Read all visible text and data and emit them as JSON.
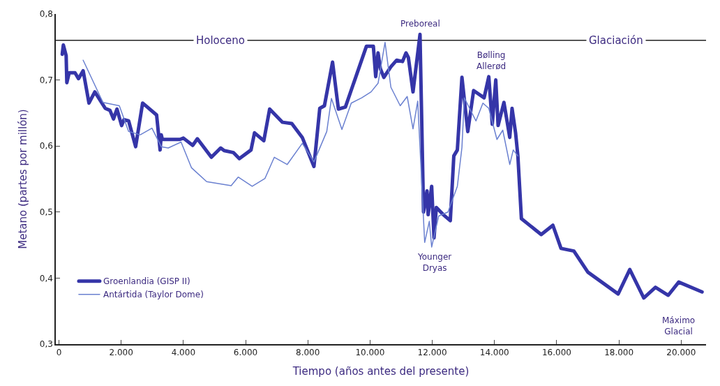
{
  "chart_data": {
    "type": "line",
    "xlabel": "Tiempo (años antes del presente)",
    "ylabel": "Metano (partes por millón)",
    "xlim": [
      -100,
      20800
    ],
    "xticks": [
      0,
      {
        "value": 2000,
        "label": "2.000"
      },
      {
        "value": 4000,
        "label": "4.000"
      },
      {
        "value": 6000,
        "label": "6.000"
      },
      {
        "value": 8000,
        "label": "8.000"
      },
      {
        "value": 10000,
        "label": "10.000"
      },
      {
        "value": 12000,
        "label": "12.000"
      },
      {
        "value": 14000,
        "label": "14.000"
      },
      {
        "value": 16000,
        "label": "16.000"
      },
      {
        "value": 18000,
        "label": "18.000"
      },
      {
        "value": 20000,
        "label": "20.000"
      }
    ],
    "ylim": [
      0.3,
      0.8
    ],
    "yticks": [
      {
        "value": 0.3,
        "label": "0,3"
      },
      {
        "value": 0.4,
        "label": "0,4"
      },
      {
        "value": 0.5,
        "label": "0,5"
      },
      {
        "value": 0.6,
        "label": "0,6"
      },
      {
        "value": 0.7,
        "label": "0,7"
      },
      {
        "value": 0.8,
        "label": "0,8"
      }
    ],
    "grid": false,
    "legend": "bottom left",
    "marker": "none",
    "line_style": "solid",
    "series": [
      {
        "name": "Groenlandia (GISP II)",
        "color": "#3535a8",
        "x": [
          106,
          142,
          232,
          254,
          330,
          517,
          630,
          779,
          966,
          1154,
          1490,
          1641,
          1754,
          1865,
          2016,
          2091,
          2241,
          2466,
          2690,
          3140,
          3252,
          3289,
          3326,
          3888,
          4001,
          4300,
          4450,
          4900,
          5199,
          5312,
          5612,
          5799,
          6174,
          6287,
          6586,
          6773,
          7186,
          7485,
          7822,
          8197,
          8384,
          8534,
          8795,
          8983,
          9208,
          9883,
          10107,
          10182,
          10258,
          10333,
          10444,
          10670,
          10857,
          11044,
          11157,
          11232,
          11381,
          11606,
          11719,
          11831,
          11868,
          11981,
          12056,
          12131,
          12356,
          12580,
          12693,
          12806,
          12954,
          13142,
          13329,
          13666,
          13817,
          13929,
          14041,
          14116,
          14303,
          14491,
          14565,
          14678,
          14752,
          14865,
          15502,
          15877,
          16139,
          16551,
          17001,
          17975,
          18349,
          18799,
          19174,
          19585,
          19922,
          20672
        ],
        "values": [
          0.739,
          0.753,
          0.737,
          0.696,
          0.711,
          0.711,
          0.702,
          0.714,
          0.665,
          0.682,
          0.657,
          0.654,
          0.641,
          0.656,
          0.631,
          0.64,
          0.638,
          0.599,
          0.665,
          0.647,
          0.594,
          0.617,
          0.61,
          0.61,
          0.612,
          0.601,
          0.611,
          0.583,
          0.597,
          0.593,
          0.59,
          0.581,
          0.594,
          0.62,
          0.608,
          0.656,
          0.636,
          0.634,
          0.613,
          0.569,
          0.657,
          0.661,
          0.727,
          0.656,
          0.659,
          0.751,
          0.751,
          0.705,
          0.741,
          0.717,
          0.704,
          0.72,
          0.73,
          0.728,
          0.741,
          0.734,
          0.682,
          0.769,
          0.5,
          0.532,
          0.496,
          0.539,
          0.461,
          0.507,
          0.496,
          0.487,
          0.585,
          0.594,
          0.704,
          0.622,
          0.684,
          0.673,
          0.705,
          0.633,
          0.7,
          0.631,
          0.666,
          0.613,
          0.657,
          0.62,
          0.585,
          0.49,
          0.466,
          0.48,
          0.445,
          0.441,
          0.409,
          0.376,
          0.413,
          0.37,
          0.386,
          0.374,
          0.394,
          0.379
        ]
      },
      {
        "name": "Antártida (Taylor Dome)",
        "color": "#6a80d0",
        "x": [
          779,
          1416,
          1941,
          2241,
          2615,
          2990,
          3289,
          3514,
          3926,
          4262,
          4750,
          5536,
          5762,
          6212,
          6624,
          6923,
          7336,
          7822,
          8197,
          8609,
          8759,
          9096,
          9396,
          9733,
          10033,
          10258,
          10482,
          10670,
          10970,
          11194,
          11381,
          11532,
          11756,
          11905,
          11981,
          12206,
          12505,
          12806,
          12954,
          13030,
          13404,
          13628,
          13817,
          14079,
          14266,
          14491,
          14603,
          14752
        ],
        "values": [
          0.73,
          0.666,
          0.661,
          0.622,
          0.617,
          0.627,
          0.599,
          0.597,
          0.606,
          0.567,
          0.546,
          0.54,
          0.553,
          0.539,
          0.551,
          0.583,
          0.572,
          0.604,
          0.576,
          0.622,
          0.672,
          0.625,
          0.665,
          0.673,
          0.682,
          0.695,
          0.757,
          0.689,
          0.661,
          0.675,
          0.626,
          0.668,
          0.454,
          0.486,
          0.447,
          0.494,
          0.5,
          0.539,
          0.598,
          0.673,
          0.638,
          0.665,
          0.657,
          0.61,
          0.624,
          0.572,
          0.594,
          0.585
        ]
      }
    ],
    "ref_lines": [
      {
        "axis": "y",
        "value": 0.76,
        "color": "#222222"
      }
    ],
    "annotations": [
      {
        "text": "Holoceno",
        "x": 5200,
        "y": 0.76
      },
      {
        "text": "Glaciación",
        "x": 17900,
        "y": 0.76
      },
      {
        "text": "Preboreal",
        "x": 11606,
        "y": 0.769
      },
      {
        "text": "Bølling\nAllerød",
        "x": 13900,
        "y": 0.705
      },
      {
        "text": "Younger\nDryas",
        "x": 12056,
        "y": 0.461
      },
      "Máximo\nGlacial"
    ]
  }
}
